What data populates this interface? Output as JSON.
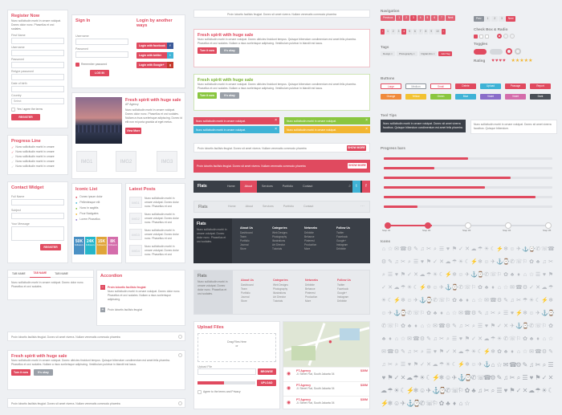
{
  "register": {
    "title": "Register Now",
    "desc": "Nunc sollicitudin morbi in ornare volutpat. Donec dolor nunc. Phasellus et orci sodales.",
    "fields": [
      "First Name",
      "Username",
      "Password",
      "Retype password",
      "Date of birth",
      "Country"
    ],
    "country_value": "Select",
    "agree": "Yes I agree the terms",
    "submit": "REGISTER"
  },
  "login": {
    "title": "Sign In",
    "fields": [
      "Username",
      "Password"
    ],
    "remember": "Remember password",
    "submit": "LOG IN",
    "alt_title": "Login by another ways",
    "fb": "Login with facebook",
    "tw": "Login with twitter",
    "gp": "Login with Google+"
  },
  "article": {
    "title": "Fresh spirit with huge sale",
    "meta": "AP Agency",
    "text": "Nunc sollicitudin morbi in ornare volutpat. Donec dolor nunc. Phasellus et orci sodales. Nullam a risus scelerisque adipiscing. Donec id elit non mi porta gravida at eget metus.",
    "button": "View More"
  },
  "images": [
    "IMG1",
    "IMG2",
    "IMG3"
  ],
  "progress_list": {
    "title": "Progress Line",
    "items": [
      "Nunc sollicitudin morbi in ornare",
      "Nunc sollicitudin morbi in ornare",
      "Nunc sollicitudin morbi in ornare",
      "Nunc sollicitudin morbi in ornare",
      "Nunc sollicitudin morbi in ornare"
    ]
  },
  "contact": {
    "title": "Contact Widget",
    "fields": [
      "Full Name",
      "Subject",
      "Your Message"
    ],
    "submit": "REGISTER"
  },
  "icon_list": {
    "title": "Iconic List",
    "items": [
      "Donec ipsum dolor",
      "Pellentesque elit",
      "Nunc in sagittis",
      "Pour Navigates",
      "Lorem Phasellus"
    ]
  },
  "counts": [
    {
      "n": "50K",
      "l": "Followers",
      "c": "#4a90c4"
    },
    {
      "n": "24K",
      "l": "Followers",
      "c": "#26b6c9"
    },
    {
      "n": "15K",
      "l": "Followers",
      "c": "#e0a53a"
    },
    {
      "n": "8K",
      "l": "Followers",
      "c": "#d46dab"
    }
  ],
  "recent": {
    "title": "Latest Posts",
    "items": [
      "IMG1",
      "IMG2",
      "IMG3",
      "IMG4"
    ]
  },
  "tabs": {
    "labels": [
      "TAB NAME",
      "TAB NAME",
      "TAB NAME"
    ],
    "text": "Nunc sollicitudin morbi in ornare volutpat. Donec dolor nunc. Phasellus et orci sodales."
  },
  "accordion": {
    "title": "Accordion",
    "items": [
      "Proin lobortis facilisis feugiat",
      "Proin lobortis facilisis feugiat"
    ],
    "text": "Nunc sollicitudin morbi in ornare volutpat. Donec dolor nunc. Phasellus et orci sodales. Nullam a risus scelerisque adipiscing."
  },
  "notice_simple": "Proin lobortis facilisis feugiat. Donec sit amet viverra. Nullam venenatis commodo pharetra",
  "promo": {
    "title": "Fresh spirit with huge sale",
    "text": "Nunc sollicitudin morbi in ornare volutpat. Donec ultricies tincidunt tempus. Quisque bibendum condimentum est amet felis pharetra. Phasellus et orci sodales. Nullam a risus scelerisque adipiscing. Vestibulum pulvinar in blandit est lacus.",
    "btn1": "Turn it now",
    "btn2": "It's okay"
  },
  "notices": {
    "top": "Proin lobortis facilisis feugiat. Donec sit amet viverra. Nullam venenatis commodo pharetra",
    "banner": "Proin lobortis facilisis feugiat. Donec sit amet viverra. Nullam venenatis commodo pharetra",
    "banner_btn": "SHOW MORE",
    "line": "Proin lobortis facilisis feugiat. Donec sit amet viverra. Nullam venenatis commodo pharetra",
    "line_btn": "SHOW MORE"
  },
  "statuses": [
    {
      "t": "Nunc sollicitudin morbi in ornare volutpat.",
      "c": "#e04a5f"
    },
    {
      "t": "Nunc sollicitudin morbi in ornare volutpat.",
      "c": "#8ac640"
    },
    {
      "t": "Nunc sollicitudin morbi in ornare volutpat.",
      "c": "#3fb3d6"
    },
    {
      "t": "Nunc sollicitudin morbi in ornare volutpat.",
      "c": "#f2b632"
    }
  ],
  "navbar": {
    "brand": "Flats",
    "items": [
      "Home",
      "About",
      "Services",
      "Portfolio",
      "Contact"
    ]
  },
  "footer": {
    "brand": "Flats",
    "cols": [
      {
        "h": "About Us",
        "i": [
          "Dashboard",
          "Team",
          "Portfolio",
          "Journal",
          "Store"
        ]
      },
      {
        "h": "Categories",
        "i": [
          "Web Designs",
          "Photography",
          "Illustrations",
          "Art Director",
          "Tutorials"
        ]
      },
      {
        "h": "Networks",
        "i": [
          "Dribbble",
          "Behance",
          "Pinterest",
          "Production",
          "More"
        ]
      },
      {
        "h": "Follow Us",
        "i": [
          "Twitter",
          "Facebook",
          "Google+",
          "Instagram",
          "Dribbble"
        ]
      }
    ],
    "text": "Nunc sollicitudin morbi in ornare volutpat. Donec dolor nunc. Phasellus et orci sodales."
  },
  "upload": {
    "title": "Upload Files",
    "drop": "Drag Files Here",
    "or": "or",
    "label": "Upload File",
    "browse": "BROWSE",
    "upload": "UPLOAD",
    "agree": "Agree to the terms and Privacy",
    "progress": 0.45
  },
  "map": {
    "places": [
      {
        "name": "PT.Agency",
        "price": "$30M",
        "addr": "Jl. Street Flat, South Jakarta 04"
      },
      {
        "name": "PT.Agency",
        "price": "$30M",
        "addr": "Jl. Street Flat, South Jakarta 04"
      },
      {
        "name": "PT.Agency",
        "price": "$30M",
        "addr": "Jl. Street Flat, South Jakarta 04"
      }
    ]
  },
  "right": {
    "navigation": "Navigation",
    "pagers": [
      "Previous",
      "1",
      "2",
      "3",
      "4",
      "5",
      "6",
      "7",
      "Next"
    ],
    "pagers2": [
      "Prev",
      "1",
      "2",
      "3",
      "Next"
    ],
    "checkbox": "Check Box & Radio",
    "tags": "Tags",
    "tag_items": [
      "Design",
      "Photography",
      "Digital Arts",
      "Add Tag"
    ],
    "toggles": "Toggles",
    "rating": "Rating",
    "buttons": "Buttons",
    "btn_row1": [
      {
        "t": "Large",
        "c": "#e04a5f"
      },
      {
        "t": "Medium",
        "c": "#8c929a"
      },
      {
        "t": "Small",
        "c": "#e04a5f"
      },
      {
        "t": "Delete",
        "c": "#e04a5f"
      },
      {
        "t": "Upload",
        "c": "#3fb3d6"
      },
      {
        "t": "Passage",
        "c": "#e04a5f"
      },
      {
        "t": "Report",
        "c": "#e04a5f"
      }
    ],
    "btn_row2": [
      {
        "t": "Orange",
        "c": "#f08a3c"
      },
      {
        "t": "Yellow",
        "c": "#f2c232"
      },
      {
        "t": "Green",
        "c": "#8ac640"
      },
      {
        "t": "Blue",
        "c": "#3fb3d6"
      },
      {
        "t": "Violet",
        "c": "#8a6dc9"
      },
      {
        "t": "Violet",
        "c": "#d46dab"
      },
      {
        "t": "Dark",
        "c": "#4a4f57"
      }
    ],
    "tooltips": "Tool Tips",
    "tooltip_text": "Nunc sollicitudin morbi in ornare volutpat. Donec sit amet viverra faucibus. Quisque bibendum condimentum est amet felis pharetra.",
    "tooltip_text2": "Nunc sollicitudin morbi in ornare volutpat. Donec sit amet viverra faucibus. Quisque bibendum.",
    "progress": "Progress bars",
    "bars": [
      0.5,
      0.3,
      0.75,
      0.6,
      0.9,
      0.2
    ],
    "steps": [
      "Step #1",
      "Step #2",
      "Step #3",
      "Step #4",
      "Step #5"
    ],
    "icons": "Icons"
  }
}
